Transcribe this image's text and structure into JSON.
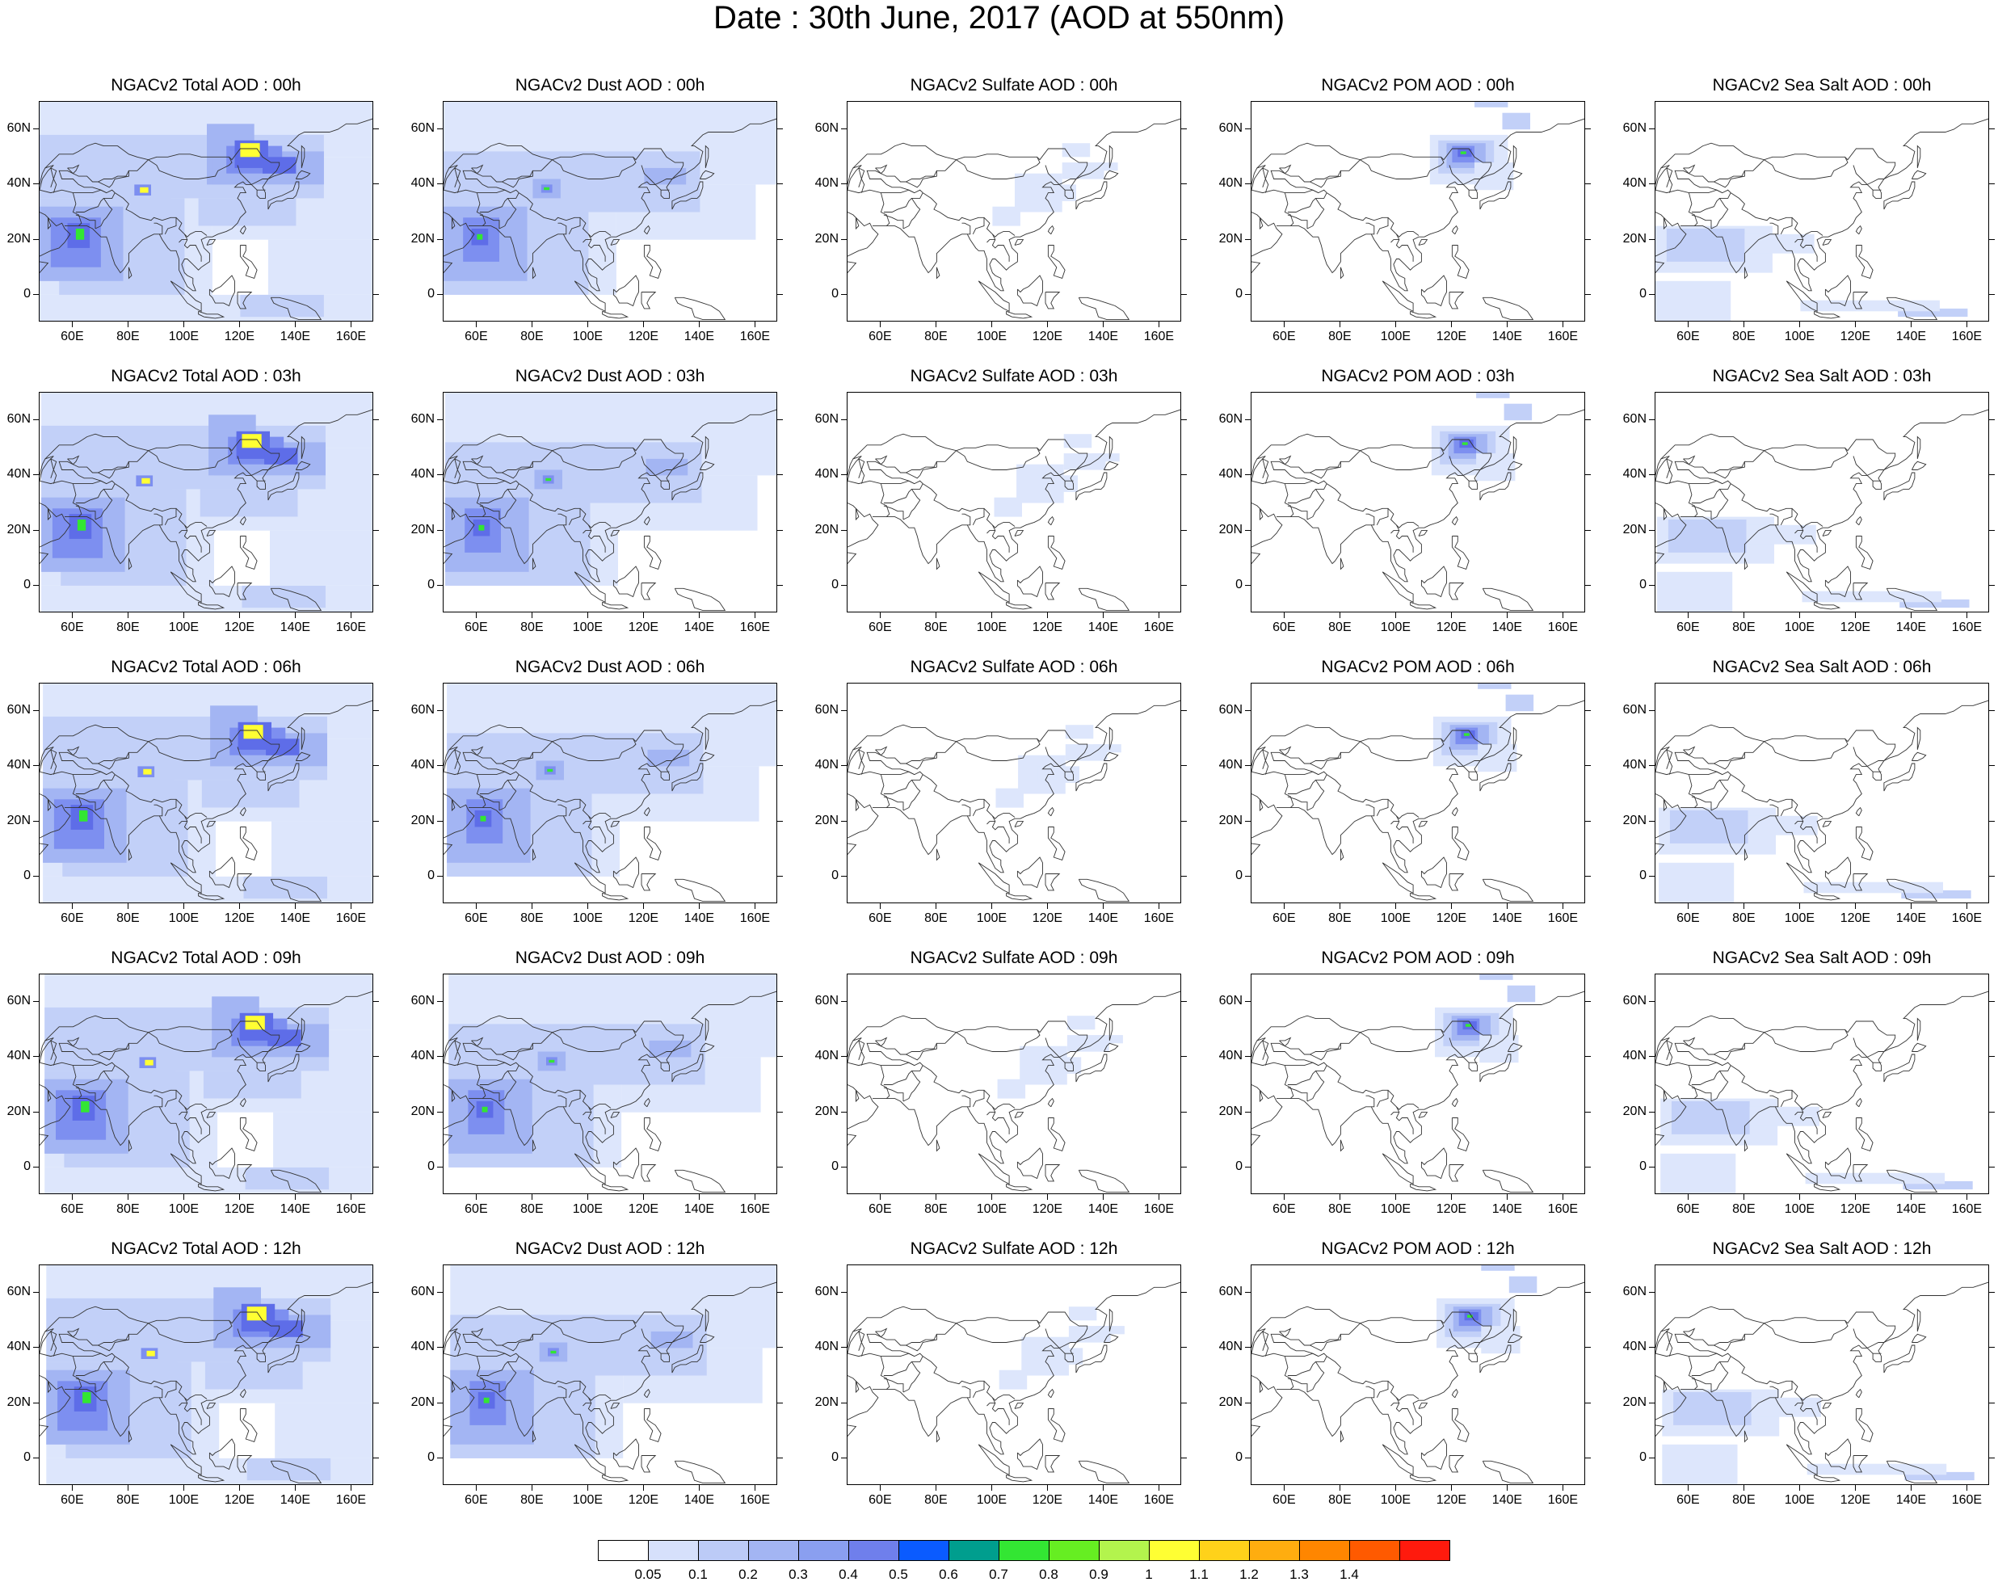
{
  "title": "Date : 30th June, 2017 (AOD at 550nm)",
  "axes": {
    "lat_ticks": [
      "60N",
      "40N",
      "20N",
      "0"
    ],
    "lat_values": [
      60,
      40,
      20,
      0
    ],
    "lat_range": [
      -10,
      70
    ],
    "lon_ticks": [
      "60E",
      "80E",
      "100E",
      "120E",
      "140E",
      "160E"
    ],
    "lon_values": [
      60,
      80,
      100,
      120,
      140,
      160
    ],
    "lon_range": [
      48,
      168
    ]
  },
  "panel_titles": [
    [
      "NGACv2 Total AOD : 00h",
      "NGACv2 Dust AOD : 00h",
      "NGACv2 Sulfate AOD : 00h",
      "NGACv2 POM AOD : 00h",
      "NGACv2 Sea Salt AOD : 00h"
    ],
    [
      "NGACv2 Total AOD : 03h",
      "NGACv2 Dust AOD : 03h",
      "NGACv2 Sulfate AOD : 03h",
      "NGACv2 POM AOD : 03h",
      "NGACv2 Sea Salt AOD : 03h"
    ],
    [
      "NGACv2 Total AOD : 06h",
      "NGACv2 Dust AOD : 06h",
      "NGACv2 Sulfate AOD : 06h",
      "NGACv2 POM AOD : 06h",
      "NGACv2 Sea Salt AOD : 06h"
    ],
    [
      "NGACv2 Total AOD : 09h",
      "NGACv2 Dust AOD : 09h",
      "NGACv2 Sulfate AOD : 09h",
      "NGACv2 POM AOD : 09h",
      "NGACv2 Sea Salt  AOD : 09h"
    ],
    [
      "NGACv2 Total AOD  : 12h",
      "NGACv2 Dust AOD : 12h",
      "NGACv2 Sulfate AOD : 12h",
      "NGACv2 POM  AOD : 12h",
      "NGACv2 Sea Salt  AOD : 12h"
    ]
  ],
  "colorbar": {
    "labels": [
      "0.05",
      "0.1",
      "0.2",
      "0.3",
      "0.4",
      "0.5",
      "0.6",
      "0.7",
      "0.8",
      "0.9",
      "1",
      "1.1",
      "1.2",
      "1.3",
      "1.4"
    ],
    "colors": [
      "#ffffff",
      "#d6e0fb",
      "#bccbf7",
      "#a3b5f3",
      "#8a9ff0",
      "#6f7fec",
      "#0a5bff",
      "#009e8e",
      "#33e633",
      "#66ee22",
      "#b3f44d",
      "#ffff33",
      "#ffd21a",
      "#ffad0f",
      "#ff8600",
      "#ff5a00",
      "#ff1a0d"
    ]
  },
  "colors": {
    "very_light": "#dde6fc",
    "light": "#c2d0f8",
    "medium": "#a3b5f3",
    "strong": "#7d8ff0",
    "very_strong": "#5e6de8",
    "hot_green": "#33e633",
    "hot_yellow": "#ffff33"
  }
}
